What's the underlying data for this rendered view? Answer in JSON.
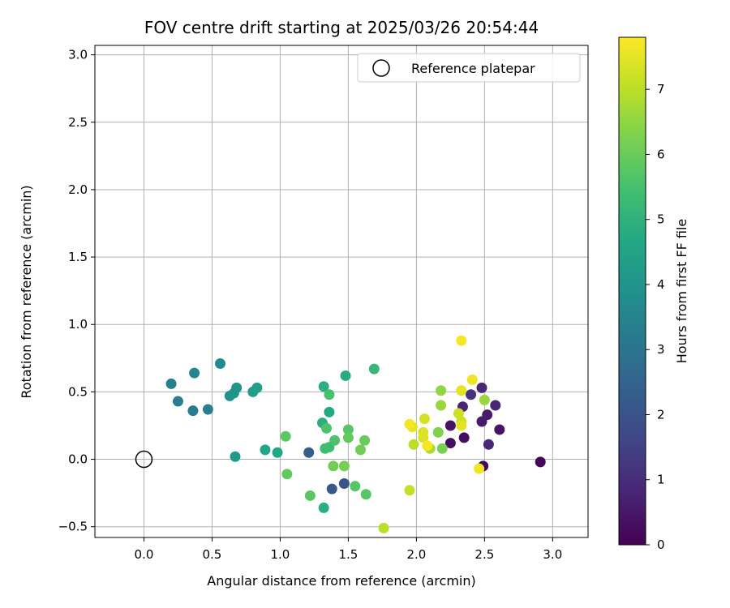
{
  "chart_data": {
    "type": "scatter",
    "title": "FOV centre drift starting at 2025/03/26 20:54:44",
    "xlabel": "Angular distance from reference (arcmin)",
    "ylabel": "Rotation from reference (arcmin)",
    "xlim": [
      -0.36,
      3.26
    ],
    "ylim": [
      -0.58,
      3.07
    ],
    "xticks": [
      "0.0",
      "0.5",
      "1.0",
      "1.5",
      "2.0",
      "2.5",
      "3.0"
    ],
    "xtick_values": [
      0,
      0.5,
      1.0,
      1.5,
      2.0,
      2.5,
      3.0
    ],
    "yticks": [
      "−0.5",
      "0.0",
      "0.5",
      "1.0",
      "1.5",
      "2.0",
      "2.5",
      "3.0"
    ],
    "ytick_values": [
      -0.5,
      0,
      0.5,
      1.0,
      1.5,
      2.0,
      2.5,
      3.0
    ],
    "grid": true,
    "legend": {
      "placement": "top-right",
      "entries": [
        "Reference platepar"
      ]
    },
    "reference": {
      "x": 0.0,
      "y": 0.0,
      "label": "Reference platepar"
    },
    "colorbar": {
      "label": "Hours from first FF file",
      "colormap": "viridis",
      "range": [
        0,
        7.8
      ],
      "ticks": [
        "0",
        "1",
        "2",
        "3",
        "4",
        "5",
        "6",
        "7"
      ],
      "tick_values": [
        0,
        1,
        2,
        3,
        4,
        5,
        6,
        7
      ]
    },
    "points": [
      {
        "x": 2.91,
        "y": -0.02,
        "hours": 0.1
      },
      {
        "x": 2.49,
        "y": -0.05,
        "hours": 0.2
      },
      {
        "x": 2.25,
        "y": 0.12,
        "hours": 0.3
      },
      {
        "x": 2.35,
        "y": 0.16,
        "hours": 0.3
      },
      {
        "x": 2.25,
        "y": 0.25,
        "hours": 0.4
      },
      {
        "x": 2.61,
        "y": 0.22,
        "hours": 0.4
      },
      {
        "x": 2.48,
        "y": 0.28,
        "hours": 0.6
      },
      {
        "x": 2.52,
        "y": 0.33,
        "hours": 0.6
      },
      {
        "x": 2.34,
        "y": 0.39,
        "hours": 0.8
      },
      {
        "x": 2.58,
        "y": 0.4,
        "hours": 0.8
      },
      {
        "x": 2.48,
        "y": 0.53,
        "hours": 0.9
      },
      {
        "x": 2.53,
        "y": 0.11,
        "hours": 0.9
      },
      {
        "x": 2.4,
        "y": 0.48,
        "hours": 1.1
      },
      {
        "x": 1.47,
        "y": -0.18,
        "hours": 2.0
      },
      {
        "x": 1.38,
        "y": -0.22,
        "hours": 2.1
      },
      {
        "x": 1.21,
        "y": 0.05,
        "hours": 2.3
      },
      {
        "x": 0.36,
        "y": 0.36,
        "hours": 3.2
      },
      {
        "x": 0.47,
        "y": 0.37,
        "hours": 3.3
      },
      {
        "x": 0.25,
        "y": 0.43,
        "hours": 3.3
      },
      {
        "x": 0.2,
        "y": 0.56,
        "hours": 3.4
      },
      {
        "x": 0.37,
        "y": 0.64,
        "hours": 3.5
      },
      {
        "x": 0.56,
        "y": 0.71,
        "hours": 3.7
      },
      {
        "x": 0.63,
        "y": 0.47,
        "hours": 3.9
      },
      {
        "x": 0.68,
        "y": 0.53,
        "hours": 4.0
      },
      {
        "x": 0.66,
        "y": 0.49,
        "hours": 4.0
      },
      {
        "x": 0.67,
        "y": 0.02,
        "hours": 4.2
      },
      {
        "x": 0.8,
        "y": 0.5,
        "hours": 4.3
      },
      {
        "x": 0.83,
        "y": 0.53,
        "hours": 4.4
      },
      {
        "x": 0.89,
        "y": 0.07,
        "hours": 4.6
      },
      {
        "x": 0.98,
        "y": 0.05,
        "hours": 4.6
      },
      {
        "x": 1.36,
        "y": 0.35,
        "hours": 4.7
      },
      {
        "x": 1.48,
        "y": 0.62,
        "hours": 4.8
      },
      {
        "x": 1.32,
        "y": 0.54,
        "hours": 4.9
      },
      {
        "x": 1.31,
        "y": 0.27,
        "hours": 4.9
      },
      {
        "x": 1.32,
        "y": -0.36,
        "hours": 4.9
      },
      {
        "x": 1.69,
        "y": 0.67,
        "hours": 5.2
      },
      {
        "x": 1.36,
        "y": 0.09,
        "hours": 5.3
      },
      {
        "x": 1.33,
        "y": 0.08,
        "hours": 5.4
      },
      {
        "x": 1.36,
        "y": 0.48,
        "hours": 5.5
      },
      {
        "x": 1.34,
        "y": 0.23,
        "hours": 5.6
      },
      {
        "x": 1.4,
        "y": 0.14,
        "hours": 5.6
      },
      {
        "x": 1.5,
        "y": 0.22,
        "hours": 5.7
      },
      {
        "x": 1.55,
        "y": -0.2,
        "hours": 5.7
      },
      {
        "x": 1.63,
        "y": -0.26,
        "hours": 5.7
      },
      {
        "x": 1.22,
        "y": -0.27,
        "hours": 5.8
      },
      {
        "x": 1.04,
        "y": 0.17,
        "hours": 5.8
      },
      {
        "x": 1.05,
        "y": -0.11,
        "hours": 5.9
      },
      {
        "x": 1.5,
        "y": 0.16,
        "hours": 5.9
      },
      {
        "x": 1.62,
        "y": 0.14,
        "hours": 6.0
      },
      {
        "x": 1.59,
        "y": 0.07,
        "hours": 6.1
      },
      {
        "x": 1.39,
        "y": -0.05,
        "hours": 6.1
      },
      {
        "x": 1.47,
        "y": -0.05,
        "hours": 6.2
      },
      {
        "x": 2.19,
        "y": 0.08,
        "hours": 6.2
      },
      {
        "x": 2.16,
        "y": 0.2,
        "hours": 6.3
      },
      {
        "x": 2.18,
        "y": 0.51,
        "hours": 6.5
      },
      {
        "x": 2.18,
        "y": 0.4,
        "hours": 6.6
      },
      {
        "x": 2.5,
        "y": 0.44,
        "hours": 6.6
      },
      {
        "x": 2.1,
        "y": 0.08,
        "hours": 6.8
      },
      {
        "x": 1.98,
        "y": 0.11,
        "hours": 7.0
      },
      {
        "x": 1.76,
        "y": -0.51,
        "hours": 7.0
      },
      {
        "x": 1.95,
        "y": -0.23,
        "hours": 7.1
      },
      {
        "x": 2.33,
        "y": 0.28,
        "hours": 7.2
      },
      {
        "x": 2.31,
        "y": 0.34,
        "hours": 7.2
      },
      {
        "x": 2.06,
        "y": 0.3,
        "hours": 7.3
      },
      {
        "x": 2.05,
        "y": 0.2,
        "hours": 7.4
      },
      {
        "x": 2.05,
        "y": 0.16,
        "hours": 7.4
      },
      {
        "x": 1.97,
        "y": 0.24,
        "hours": 7.5
      },
      {
        "x": 2.33,
        "y": 0.51,
        "hours": 7.5
      },
      {
        "x": 2.33,
        "y": 0.25,
        "hours": 7.5
      },
      {
        "x": 2.46,
        "y": -0.07,
        "hours": 7.6
      },
      {
        "x": 2.41,
        "y": 0.59,
        "hours": 7.6
      },
      {
        "x": 2.33,
        "y": 0.88,
        "hours": 7.7
      },
      {
        "x": 1.95,
        "y": 0.26,
        "hours": 7.7
      },
      {
        "x": 2.08,
        "y": 0.1,
        "hours": 7.7
      }
    ]
  }
}
